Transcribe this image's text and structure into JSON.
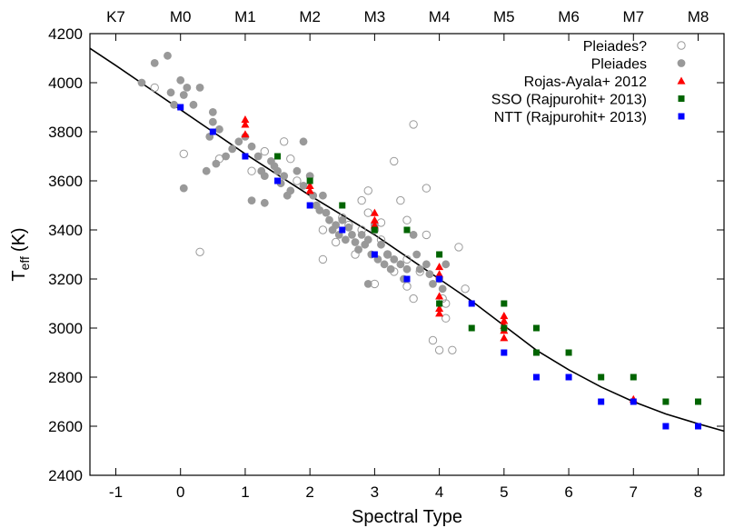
{
  "chart_data": {
    "type": "scatter",
    "xlabel": "Spectral Type",
    "ylabel": "T",
    "ylabel_sub": "eff",
    "ylabel_unit": "(K)",
    "xlim": [
      -1.4,
      8.4
    ],
    "ylim": [
      2400,
      4200
    ],
    "x_ticks": [
      -1,
      0,
      1,
      2,
      3,
      4,
      5,
      6,
      7,
      8
    ],
    "y_ticks": [
      2400,
      2600,
      2800,
      3000,
      3200,
      3400,
      3600,
      3800,
      4000,
      4200
    ],
    "top_axis_labels": [
      {
        "x": -1,
        "label": "K7"
      },
      {
        "x": 0,
        "label": "M0"
      },
      {
        "x": 1,
        "label": "M1"
      },
      {
        "x": 2,
        "label": "M2"
      },
      {
        "x": 3,
        "label": "M3"
      },
      {
        "x": 4,
        "label": "M4"
      },
      {
        "x": 5,
        "label": "M5"
      },
      {
        "x": 6,
        "label": "M6"
      },
      {
        "x": 7,
        "label": "M7"
      },
      {
        "x": 8,
        "label": "M8"
      }
    ],
    "grid": false,
    "legend_position": "top-right",
    "fit_curve": {
      "points": [
        [
          -1.4,
          4140
        ],
        [
          -1,
          4070
        ],
        [
          -0.5,
          3980
        ],
        [
          0,
          3890
        ],
        [
          0.5,
          3800
        ],
        [
          1,
          3710
        ],
        [
          1.5,
          3625
        ],
        [
          2,
          3540
        ],
        [
          2.5,
          3460
        ],
        [
          3,
          3380
        ],
        [
          3.5,
          3290
        ],
        [
          4,
          3200
        ],
        [
          4.5,
          3110
        ],
        [
          5,
          3010
        ],
        [
          5.5,
          2910
        ],
        [
          6,
          2830
        ],
        [
          6.5,
          2760
        ],
        [
          7,
          2700
        ],
        [
          7.5,
          2650
        ],
        [
          8,
          2610
        ],
        [
          8.4,
          2580
        ]
      ],
      "color": "#000000"
    },
    "series": [
      {
        "name": "Pleiades?",
        "marker": "open-circle",
        "color": "#999999",
        "points": [
          [
            -0.4,
            3980
          ],
          [
            0.05,
            3710
          ],
          [
            0.3,
            3310
          ],
          [
            0.6,
            3690
          ],
          [
            1.1,
            3640
          ],
          [
            1.3,
            3720
          ],
          [
            1.6,
            3760
          ],
          [
            1.7,
            3690
          ],
          [
            1.8,
            3600
          ],
          [
            2.2,
            3280
          ],
          [
            2.2,
            3400
          ],
          [
            2.4,
            3350
          ],
          [
            2.5,
            3450
          ],
          [
            2.6,
            3420
          ],
          [
            2.7,
            3300
          ],
          [
            2.8,
            3520
          ],
          [
            2.8,
            3400
          ],
          [
            2.9,
            3560
          ],
          [
            2.9,
            3470
          ],
          [
            3.0,
            3400
          ],
          [
            3.0,
            3180
          ],
          [
            3.1,
            3430
          ],
          [
            3.1,
            3360
          ],
          [
            3.2,
            3300
          ],
          [
            3.3,
            3230
          ],
          [
            3.3,
            3680
          ],
          [
            3.4,
            3520
          ],
          [
            3.5,
            3440
          ],
          [
            3.5,
            3280
          ],
          [
            3.5,
            3170
          ],
          [
            3.6,
            3830
          ],
          [
            3.6,
            3120
          ],
          [
            3.7,
            3230
          ],
          [
            3.8,
            3570
          ],
          [
            3.8,
            3380
          ],
          [
            3.9,
            2950
          ],
          [
            4.0,
            2910
          ],
          [
            4.05,
            3120
          ],
          [
            4.1,
            3040
          ],
          [
            4.1,
            3100
          ],
          [
            4.2,
            2910
          ],
          [
            4.3,
            3330
          ],
          [
            4.4,
            3160
          ]
        ]
      },
      {
        "name": "Pleiades",
        "marker": "filled-circle",
        "color": "#999999",
        "points": [
          [
            -0.6,
            4000
          ],
          [
            -0.4,
            4080
          ],
          [
            -0.2,
            4110
          ],
          [
            -0.15,
            3960
          ],
          [
            -0.1,
            3910
          ],
          [
            0.0,
            4010
          ],
          [
            0.05,
            3950
          ],
          [
            0.1,
            3980
          ],
          [
            0.2,
            3910
          ],
          [
            0.3,
            3980
          ],
          [
            0.4,
            3640
          ],
          [
            0.45,
            3780
          ],
          [
            0.5,
            3880
          ],
          [
            0.5,
            3840
          ],
          [
            0.55,
            3670
          ],
          [
            0.6,
            3810
          ],
          [
            0.7,
            3700
          ],
          [
            0.8,
            3730
          ],
          [
            0.9,
            3760
          ],
          [
            1.0,
            3780
          ],
          [
            1.1,
            3740
          ],
          [
            1.2,
            3700
          ],
          [
            1.25,
            3640
          ],
          [
            1.3,
            3620
          ],
          [
            1.4,
            3680
          ],
          [
            1.45,
            3660
          ],
          [
            1.5,
            3640
          ],
          [
            1.55,
            3590
          ],
          [
            1.6,
            3620
          ],
          [
            1.65,
            3540
          ],
          [
            1.7,
            3560
          ],
          [
            1.8,
            3640
          ],
          [
            1.9,
            3580
          ],
          [
            2.0,
            3620
          ],
          [
            2.05,
            3540
          ],
          [
            2.1,
            3500
          ],
          [
            2.15,
            3480
          ],
          [
            2.2,
            3540
          ],
          [
            2.25,
            3470
          ],
          [
            2.3,
            3440
          ],
          [
            2.35,
            3400
          ],
          [
            2.4,
            3420
          ],
          [
            2.45,
            3380
          ],
          [
            2.5,
            3440
          ],
          [
            2.55,
            3360
          ],
          [
            2.6,
            3410
          ],
          [
            2.65,
            3380
          ],
          [
            2.7,
            3350
          ],
          [
            2.75,
            3320
          ],
          [
            2.8,
            3380
          ],
          [
            2.85,
            3340
          ],
          [
            2.9,
            3360
          ],
          [
            2.95,
            3300
          ],
          [
            3.0,
            3420
          ],
          [
            3.05,
            3280
          ],
          [
            3.1,
            3340
          ],
          [
            3.15,
            3260
          ],
          [
            3.2,
            3300
          ],
          [
            3.25,
            3240
          ],
          [
            3.3,
            3280
          ],
          [
            3.4,
            3260
          ],
          [
            3.45,
            3200
          ],
          [
            3.5,
            3240
          ],
          [
            3.6,
            3380
          ],
          [
            3.65,
            3300
          ],
          [
            3.7,
            3240
          ],
          [
            3.8,
            3260
          ],
          [
            3.85,
            3220
          ],
          [
            3.9,
            3180
          ],
          [
            4.0,
            3200
          ],
          [
            4.05,
            3160
          ],
          [
            4.1,
            3260
          ],
          [
            0.05,
            3570
          ],
          [
            1.1,
            3520
          ],
          [
            1.3,
            3510
          ],
          [
            1.9,
            3760
          ],
          [
            2.9,
            3180
          ]
        ]
      },
      {
        "name": "Rojas-Ayala+ 2012",
        "marker": "triangle",
        "color": "#ff0000",
        "points": [
          [
            1.0,
            3850
          ],
          [
            1.0,
            3830
          ],
          [
            1.0,
            3790
          ],
          [
            2.0,
            3560
          ],
          [
            2.0,
            3580
          ],
          [
            3.0,
            3470
          ],
          [
            3.0,
            3440
          ],
          [
            3.0,
            3420
          ],
          [
            4.0,
            3250
          ],
          [
            4.0,
            3220
          ],
          [
            4.0,
            3130
          ],
          [
            4.0,
            3080
          ],
          [
            4.0,
            3060
          ],
          [
            5.0,
            3050
          ],
          [
            5.0,
            3030
          ],
          [
            5.0,
            3010
          ],
          [
            5.0,
            2990
          ],
          [
            5.0,
            2960
          ],
          [
            7.0,
            2710
          ]
        ]
      },
      {
        "name": "SSO (Rajpurohit+ 2013)",
        "marker": "square",
        "color": "#006400",
        "points": [
          [
            1.5,
            3700
          ],
          [
            2.0,
            3600
          ],
          [
            2.5,
            3500
          ],
          [
            3.0,
            3400
          ],
          [
            3.5,
            3400
          ],
          [
            4.0,
            3300
          ],
          [
            4.0,
            3100
          ],
          [
            4.5,
            3000
          ],
          [
            5.0,
            3100
          ],
          [
            5.0,
            3000
          ],
          [
            5.5,
            3000
          ],
          [
            5.5,
            2900
          ],
          [
            6.0,
            2900
          ],
          [
            6.5,
            2800
          ],
          [
            7.0,
            2800
          ],
          [
            7.5,
            2700
          ],
          [
            8.0,
            2700
          ]
        ]
      },
      {
        "name": "NTT (Rajpurohit+ 2013)",
        "marker": "square",
        "color": "#0000ff",
        "points": [
          [
            0.0,
            3900
          ],
          [
            0.5,
            3800
          ],
          [
            1.0,
            3700
          ],
          [
            1.5,
            3600
          ],
          [
            2.0,
            3500
          ],
          [
            2.5,
            3400
          ],
          [
            3.0,
            3300
          ],
          [
            3.5,
            3200
          ],
          [
            4.0,
            3200
          ],
          [
            4.5,
            3100
          ],
          [
            5.0,
            2900
          ],
          [
            5.5,
            2800
          ],
          [
            6.0,
            2800
          ],
          [
            6.5,
            2700
          ],
          [
            7.0,
            2700
          ],
          [
            7.5,
            2600
          ],
          [
            8.0,
            2600
          ]
        ]
      }
    ]
  }
}
